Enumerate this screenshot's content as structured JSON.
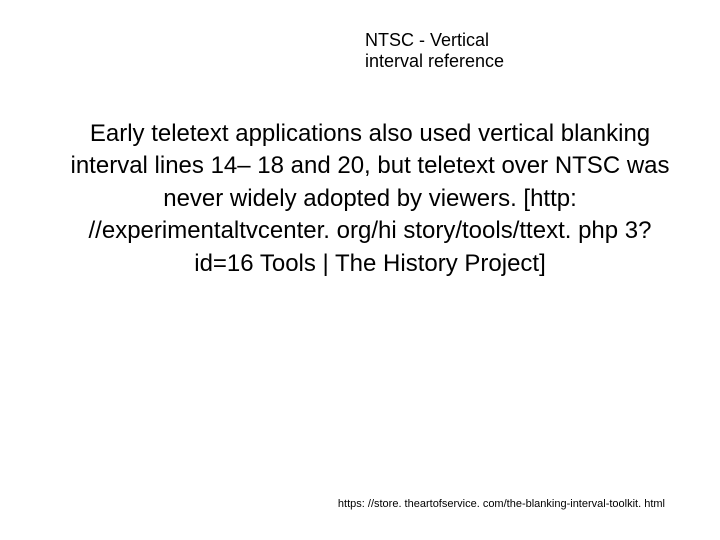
{
  "slide": {
    "title": "NTSC - Vertical interval reference",
    "body": "Early teletext applications also used vertical blanking interval lines 14– 18 and 20, but teletext over NTSC was never widely adopted by viewers. [http: //experimentaltvcenter. org/hi story/tools/ttext. php 3? id=16 Tools | The History Project]",
    "footer_url": "https: //store. theartofservice. com/the-blanking-interval-toolkit. html"
  },
  "styling": {
    "background_color": "#ffffff",
    "text_color": "#000000",
    "title_fontsize": 18,
    "body_fontsize": 24,
    "footer_fontsize": 11,
    "font_family": "Arial"
  }
}
